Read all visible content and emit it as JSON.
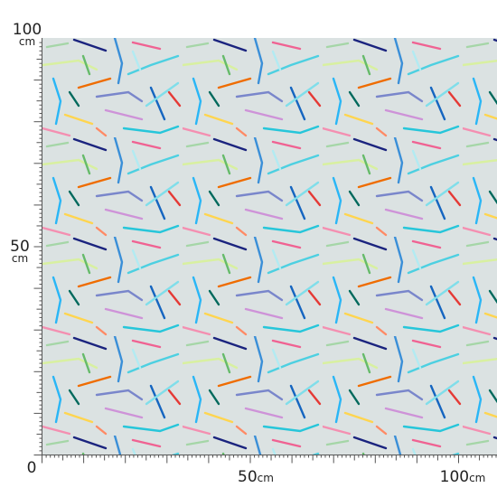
{
  "rulers": {
    "vertical": [
      {
        "number": "100",
        "unit": "cm"
      },
      {
        "number": "50",
        "unit": "cm"
      },
      {
        "number": "0"
      }
    ],
    "horizontal": [
      {
        "number": "50",
        "unit": "cm"
      },
      {
        "number": "100",
        "unit": "cm"
      }
    ]
  }
}
